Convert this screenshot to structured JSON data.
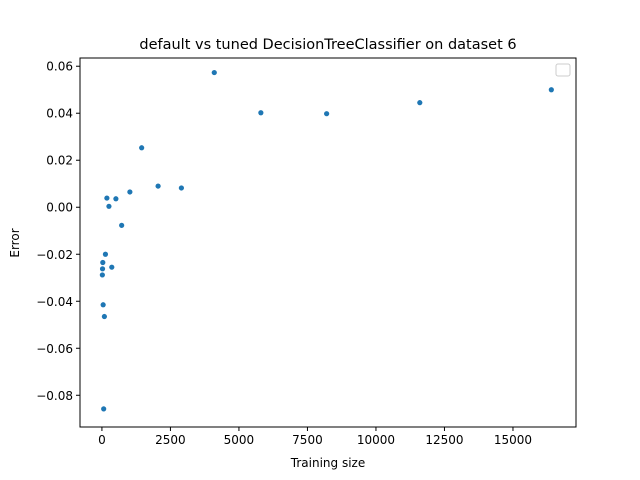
{
  "chart_data": {
    "type": "scatter",
    "title": "default vs tuned DecisionTreeClassifier on dataset 6",
    "xlabel": "Training size",
    "ylabel": "Error",
    "xlim": [
      -800,
      17300
    ],
    "ylim": [
      -0.0935,
      0.0635
    ],
    "xticks": [
      0,
      2500,
      5000,
      7500,
      10000,
      12500,
      15000
    ],
    "yticks": [
      -0.08,
      -0.06,
      -0.04,
      -0.02,
      0.0,
      0.02,
      0.04,
      0.06
    ],
    "ytick_labels": [
      "−0.08",
      "−0.06",
      "−0.04",
      "−0.02",
      "0.00",
      "0.02",
      "0.04",
      "0.06"
    ],
    "grid": false,
    "legend": {
      "placement": "top-right",
      "entries": []
    },
    "point_color": "#1f77b4",
    "series": [
      {
        "points": [
          {
            "x": 16400,
            "y": 0.05
          },
          {
            "x": 11600,
            "y": 0.0445
          },
          {
            "x": 8200,
            "y": 0.0398
          },
          {
            "x": 5800,
            "y": 0.0402
          },
          {
            "x": 4100,
            "y": 0.0573
          },
          {
            "x": 2900,
            "y": 0.0082
          },
          {
            "x": 2050,
            "y": 0.009
          },
          {
            "x": 1450,
            "y": 0.0253
          },
          {
            "x": 1020,
            "y": 0.0065
          },
          {
            "x": 720,
            "y": -0.0077
          },
          {
            "x": 510,
            "y": 0.0036
          },
          {
            "x": 360,
            "y": -0.0255
          },
          {
            "x": 256,
            "y": 0.0004
          },
          {
            "x": 181,
            "y": 0.0039
          },
          {
            "x": 128,
            "y": -0.02
          },
          {
            "x": 90,
            "y": -0.0465
          },
          {
            "x": 64,
            "y": -0.0858
          },
          {
            "x": 45,
            "y": -0.0415
          },
          {
            "x": 32,
            "y": -0.0235
          },
          {
            "x": 22,
            "y": -0.0262
          },
          {
            "x": 16,
            "y": -0.0288
          }
        ]
      }
    ]
  }
}
